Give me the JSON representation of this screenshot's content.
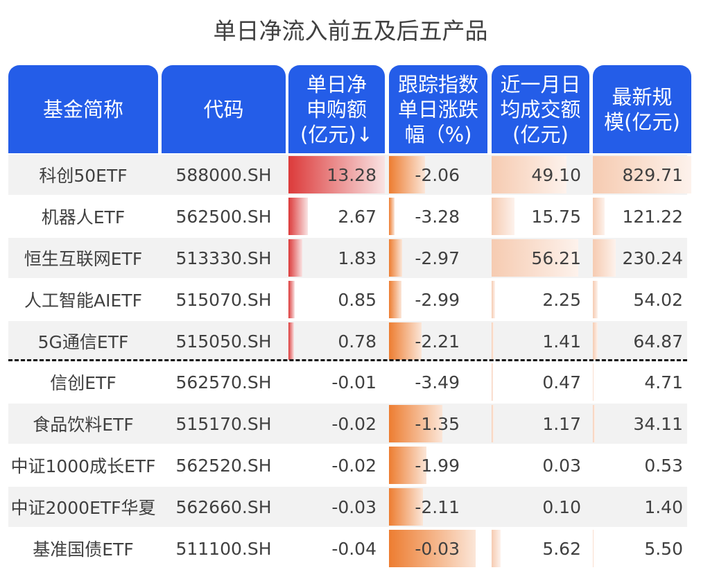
{
  "title": "单日净流入前五及后五产品",
  "headers": {
    "name": "基金简称",
    "code": "代码",
    "netflow": [
      "单日净",
      "申购额",
      "(亿元)↓"
    ],
    "index_chg": [
      "跟踪指数",
      "单日涨跌",
      "幅（%)"
    ],
    "turnover": [
      "近一月日",
      "均成交额",
      "(亿元)"
    ],
    "scale": [
      "最新规",
      "模(亿元)"
    ]
  },
  "colors": {
    "header_bg": "#245de8",
    "netflow_bar": "#dc3a3a",
    "index_bar": "#ed7d31",
    "turnover_bar": "#f6cbb1",
    "row_alt": "#f2f2f2"
  },
  "rows": [
    {
      "name": "科创50ETF",
      "code": "588000.SH",
      "netflow": "13.28",
      "index_chg": "-2.06",
      "turnover": "49.10",
      "scale": "829.71"
    },
    {
      "name": "机器人ETF",
      "code": "562500.SH",
      "netflow": "2.67",
      "index_chg": "-3.28",
      "turnover": "15.75",
      "scale": "121.22"
    },
    {
      "name": "恒生互联网ETF",
      "code": "513330.SH",
      "netflow": "1.83",
      "index_chg": "-2.97",
      "turnover": "56.21",
      "scale": "230.24"
    },
    {
      "name": "人工智能AIETF",
      "code": "515070.SH",
      "netflow": "0.85",
      "index_chg": "-2.99",
      "turnover": "2.25",
      "scale": "54.02"
    },
    {
      "name": "5G通信ETF",
      "code": "515050.SH",
      "netflow": "0.78",
      "index_chg": "-2.21",
      "turnover": "1.41",
      "scale": "64.87"
    },
    {
      "name": "信创ETF",
      "code": "562570.SH",
      "netflow": "-0.01",
      "index_chg": "-3.49",
      "turnover": "0.47",
      "scale": "4.71"
    },
    {
      "name": "食品饮料ETF",
      "code": "515170.SH",
      "netflow": "-0.02",
      "index_chg": "-1.35",
      "turnover": "1.17",
      "scale": "34.11"
    },
    {
      "name": "中证1000成长ETF",
      "code": "562520.SH",
      "netflow": "-0.02",
      "index_chg": "-1.99",
      "turnover": "0.03",
      "scale": "0.53"
    },
    {
      "name": "中证2000ETF华夏",
      "code": "562660.SH",
      "netflow": "-0.03",
      "index_chg": "-2.11",
      "turnover": "0.10",
      "scale": "1.40"
    },
    {
      "name": "基准国债ETF",
      "code": "511100.SH",
      "netflow": "-0.04",
      "index_chg": "-0.03",
      "turnover": "5.62",
      "scale": "5.50"
    }
  ],
  "bar_widths": {
    "netflow": [
      139,
      28,
      20,
      9,
      8,
      0,
      0,
      0,
      0,
      0
    ],
    "index_chg": [
      52,
      8,
      19,
      18,
      47,
      0,
      77,
      54,
      49,
      125
    ],
    "turnover": [
      108,
      33,
      125,
      5,
      3,
      2,
      3,
      0,
      0,
      13
    ],
    "scale": [
      142,
      17,
      33,
      7,
      7,
      1,
      3,
      0,
      0,
      1
    ]
  }
}
